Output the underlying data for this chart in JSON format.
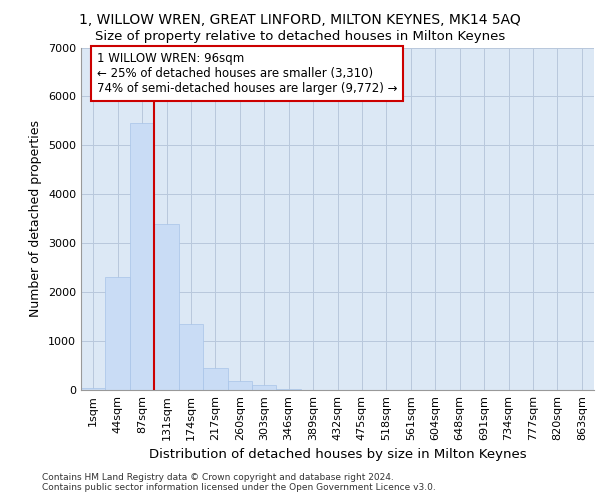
{
  "title_line1": "1, WILLOW WREN, GREAT LINFORD, MILTON KEYNES, MK14 5AQ",
  "title_line2": "Size of property relative to detached houses in Milton Keynes",
  "xlabel": "Distribution of detached houses by size in Milton Keynes",
  "ylabel": "Number of detached properties",
  "footer": "Contains HM Land Registry data © Crown copyright and database right 2024.\nContains public sector information licensed under the Open Government Licence v3.0.",
  "bar_color": "#c9dcf5",
  "bar_edgecolor": "#a8c4e8",
  "grid_color": "#b8c8dc",
  "background_color": "#dce8f5",
  "categories": [
    "1sqm",
    "44sqm",
    "87sqm",
    "131sqm",
    "174sqm",
    "217sqm",
    "260sqm",
    "303sqm",
    "346sqm",
    "389sqm",
    "432sqm",
    "475sqm",
    "518sqm",
    "561sqm",
    "604sqm",
    "648sqm",
    "691sqm",
    "734sqm",
    "777sqm",
    "820sqm",
    "863sqm"
  ],
  "values": [
    50,
    2300,
    5450,
    3400,
    1350,
    450,
    175,
    100,
    30,
    5,
    0,
    0,
    0,
    0,
    0,
    0,
    0,
    0,
    0,
    0,
    0
  ],
  "ylim": [
    0,
    7000
  ],
  "yticks": [
    0,
    1000,
    2000,
    3000,
    4000,
    5000,
    6000,
    7000
  ],
  "property_line_x": 2.5,
  "annotation_text": "1 WILLOW WREN: 96sqm\n← 25% of detached houses are smaller (3,310)\n74% of semi-detached houses are larger (9,772) →",
  "annotation_box_color": "#ffffff",
  "annotation_box_edgecolor": "#cc0000",
  "red_line_color": "#cc0000",
  "title_fontsize": 10,
  "subtitle_fontsize": 9.5,
  "axis_label_fontsize": 9,
  "tick_fontsize": 8,
  "annotation_fontsize": 8.5
}
